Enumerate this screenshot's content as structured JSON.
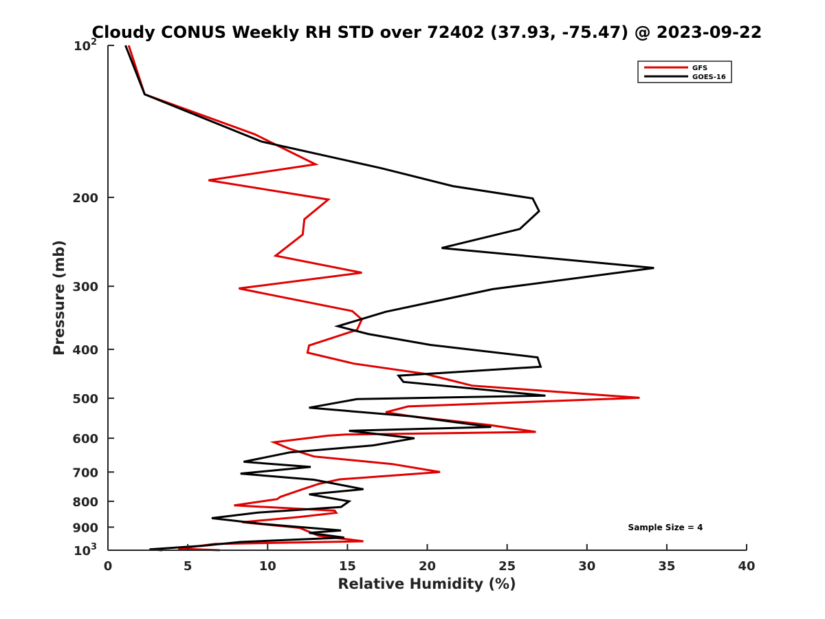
{
  "chart_data": {
    "type": "line",
    "title": "Cloudy CONUS Weekly RH STD over 72402 (37.93, -75.47) @ 2023-09-22",
    "xlabel": "Relative Humidity (%)",
    "ylabel": "Pressure (mb)",
    "xlim": [
      0,
      40
    ],
    "ylim": [
      100,
      1000
    ],
    "y_scale": "log",
    "y_reversed": true,
    "x_ticks": [
      0,
      5,
      10,
      15,
      20,
      25,
      30,
      35,
      40
    ],
    "y_ticks": [
      {
        "value": 100,
        "base": "10",
        "exp": "2"
      },
      {
        "value": 200,
        "label": "200"
      },
      {
        "value": 300,
        "label": "300"
      },
      {
        "value": 400,
        "label": "400"
      },
      {
        "value": 500,
        "label": "500"
      },
      {
        "value": 600,
        "label": "600"
      },
      {
        "value": 700,
        "label": "700"
      },
      {
        "value": 800,
        "label": "800"
      },
      {
        "value": 900,
        "label": "900"
      },
      {
        "value": 1000,
        "base": "10",
        "exp": "3"
      }
    ],
    "grid": false,
    "legend_position": "top-right",
    "annotation": "Sample Size = 4",
    "series": [
      {
        "name": "GFS",
        "color": "#e00000",
        "points": [
          [
            1.3,
            100
          ],
          [
            2.3,
            125
          ],
          [
            9.2,
            150
          ],
          [
            13.0,
            172
          ],
          [
            6.3,
            185
          ],
          [
            13.8,
            202
          ],
          [
            12.3,
            221
          ],
          [
            12.2,
            237
          ],
          [
            10.5,
            261
          ],
          [
            15.9,
            282
          ],
          [
            8.2,
            303
          ],
          [
            15.3,
            336
          ],
          [
            15.9,
            349
          ],
          [
            15.6,
            366
          ],
          [
            12.6,
            393
          ],
          [
            12.5,
            406
          ],
          [
            15.4,
            427
          ],
          [
            19.8,
            447
          ],
          [
            21.4,
            460
          ],
          [
            22.8,
            472
          ],
          [
            33.3,
            499
          ],
          [
            18.8,
            519
          ],
          [
            17.4,
            533
          ],
          [
            19.0,
            543
          ],
          [
            23.9,
            565
          ],
          [
            26.8,
            583
          ],
          [
            14.9,
            590
          ],
          [
            13.8,
            593
          ],
          [
            10.4,
            611
          ],
          [
            11.4,
            630
          ],
          [
            12.9,
            652
          ],
          [
            17.8,
            675
          ],
          [
            20.8,
            700
          ],
          [
            14.5,
            724
          ],
          [
            13.2,
            739
          ],
          [
            12.1,
            759
          ],
          [
            10.8,
            784
          ],
          [
            10.6,
            792
          ],
          [
            7.9,
            815
          ],
          [
            14.2,
            835
          ],
          [
            14.3,
            843
          ],
          [
            12.0,
            859
          ],
          [
            8.4,
            880
          ],
          [
            12.0,
            903
          ],
          [
            13.2,
            936
          ],
          [
            16.0,
            960
          ],
          [
            6.7,
            972
          ],
          [
            4.4,
            993
          ],
          [
            7.0,
            1000
          ]
        ]
      },
      {
        "name": "GOES-16",
        "color": "#000000",
        "points": [
          [
            1.1,
            100
          ],
          [
            2.3,
            125
          ],
          [
            9.6,
            155
          ],
          [
            17.1,
            175
          ],
          [
            21.6,
            190
          ],
          [
            26.6,
            201
          ],
          [
            27.0,
            213
          ],
          [
            25.8,
            231
          ],
          [
            20.9,
            252
          ],
          [
            34.2,
            276
          ],
          [
            24.1,
            304
          ],
          [
            17.4,
            337
          ],
          [
            14.4,
            360
          ],
          [
            16.3,
            373
          ],
          [
            20.2,
            392
          ],
          [
            26.9,
            415
          ],
          [
            27.1,
            433
          ],
          [
            18.2,
            451
          ],
          [
            18.5,
            464
          ],
          [
            27.4,
            494
          ],
          [
            15.6,
            502
          ],
          [
            12.6,
            522
          ],
          [
            19.0,
            543
          ],
          [
            24.0,
            570
          ],
          [
            15.1,
            580
          ],
          [
            19.2,
            600
          ],
          [
            16.6,
            620
          ],
          [
            11.4,
            640
          ],
          [
            8.5,
            668
          ],
          [
            12.7,
            684
          ],
          [
            8.3,
            705
          ],
          [
            12.9,
            725
          ],
          [
            16.0,
            757
          ],
          [
            12.6,
            775
          ],
          [
            15.1,
            800
          ],
          [
            14.6,
            821
          ],
          [
            9.4,
            842
          ],
          [
            6.5,
            864
          ],
          [
            9.7,
            887
          ],
          [
            14.6,
            914
          ],
          [
            12.6,
            924
          ],
          [
            14.8,
            944
          ],
          [
            8.3,
            963
          ],
          [
            5.9,
            980
          ],
          [
            2.6,
            996
          ],
          [
            3.4,
            1000
          ]
        ]
      }
    ]
  }
}
